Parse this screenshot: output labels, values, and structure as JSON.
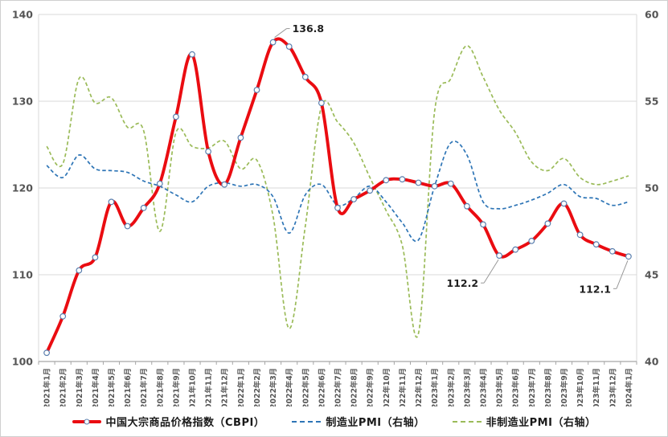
{
  "chart_data": {
    "type": "line",
    "title": "",
    "x_labels": [
      "2021年1月",
      "2021年2月",
      "2021年3月",
      "2021年4月",
      "2021年5月",
      "2021年6月",
      "2021年7月",
      "2021年8月",
      "2021年9月",
      "2021年10月",
      "2021年11月",
      "2021年12月",
      "2022年1月",
      "2022年2月",
      "2022年3月",
      "2022年4月",
      "2022年5月",
      "2022年6月",
      "2022年7月",
      "2022年8月",
      "2022年9月",
      "2022年10月",
      "2022年11月",
      "2022年12月",
      "2023年1月",
      "2023年2月",
      "2023年3月",
      "2023年4月",
      "2023年5月",
      "2023年6月",
      "2023年7月",
      "2023年8月",
      "2023年9月",
      "2023年10月",
      "2023年11月",
      "2023年12月",
      "2024年1月"
    ],
    "axes": {
      "left": {
        "min": 100,
        "max": 140,
        "step": 10,
        "ticks": [
          "100",
          "110",
          "120",
          "130",
          "140"
        ]
      },
      "right": {
        "min": 40,
        "max": 60,
        "step": 5,
        "ticks": [
          "40",
          "45",
          "50",
          "55",
          "60"
        ]
      }
    },
    "grid_on": true,
    "legend_position": "bottom",
    "series": [
      {
        "name": "中国大宗商品价格指数（CBPI）",
        "axis": "left",
        "color": "#ea0c11",
        "style": "solid-markers",
        "values": [
          101.0,
          105.2,
          110.5,
          112.0,
          118.4,
          115.6,
          117.7,
          120.5,
          128.2,
          135.4,
          124.2,
          120.4,
          125.8,
          131.3,
          136.8,
          136.3,
          132.8,
          129.8,
          117.7,
          118.7,
          119.7,
          120.9,
          121.0,
          120.6,
          120.2,
          120.5,
          117.9,
          115.8,
          112.2,
          112.9,
          113.9,
          115.9,
          118.2,
          114.6,
          113.5,
          112.7,
          112.1
        ]
      },
      {
        "name": "制造业PMI（右轴）",
        "axis": "right",
        "color": "#2e75b6",
        "style": "dashed",
        "values": [
          51.3,
          50.6,
          51.9,
          51.1,
          51.0,
          50.9,
          50.4,
          50.1,
          49.6,
          49.2,
          50.1,
          50.3,
          50.1,
          50.2,
          49.5,
          47.4,
          49.6,
          50.2,
          49.0,
          49.4,
          50.1,
          49.2,
          48.0,
          47.0,
          50.1,
          52.6,
          51.9,
          49.2,
          48.8,
          49.0,
          49.3,
          49.7,
          50.2,
          49.5,
          49.4,
          49.0,
          49.2
        ]
      },
      {
        "name": "非制造业PMI（右轴）",
        "axis": "right",
        "color": "#9bbb59",
        "style": "dashed",
        "values": [
          52.4,
          51.4,
          56.3,
          54.9,
          55.2,
          53.5,
          53.3,
          47.5,
          53.2,
          52.4,
          52.3,
          52.7,
          51.1,
          51.6,
          48.4,
          41.9,
          47.8,
          54.7,
          53.8,
          52.6,
          50.6,
          48.7,
          46.7,
          41.6,
          54.4,
          56.3,
          58.2,
          56.4,
          54.5,
          53.2,
          51.5,
          51.0,
          51.7,
          50.6,
          50.2,
          50.4,
          50.7
        ]
      }
    ],
    "annotations": [
      {
        "text": "136.8",
        "series": 0,
        "index": 14,
        "placement": "above-right"
      },
      {
        "text": "112.2",
        "series": 0,
        "index": 28,
        "placement": "below-left"
      },
      {
        "text": "112.1",
        "series": 0,
        "index": 36,
        "placement": "below-left"
      }
    ],
    "marker": {
      "fill": "#ffffff",
      "stroke": "#5a7fae"
    },
    "colors": {
      "grid": "#d9d9d9",
      "axis": "#a6a6a6",
      "tick_label": "#555555",
      "annotation_text": "#1f1f1f",
      "leader_line": "#999999"
    }
  }
}
